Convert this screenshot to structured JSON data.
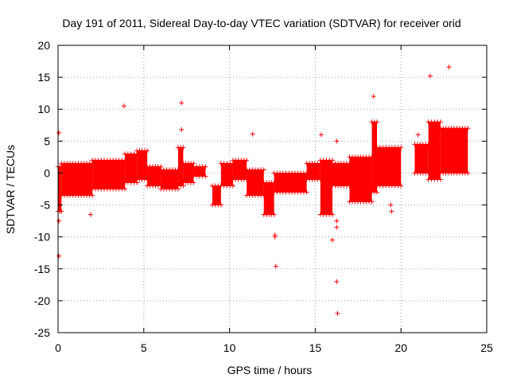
{
  "chart_data": {
    "type": "scatter",
    "title": "Day 191 of 2011, Sidereal Day-to-day VTEC variation (SDTVAR) for receiver orid",
    "xlabel": "GPS time / hours",
    "ylabel": "SDTVAR / TECUs",
    "xlim": [
      0,
      25
    ],
    "ylim": [
      -25,
      20
    ],
    "xticks": [
      0,
      5,
      10,
      15,
      20,
      25
    ],
    "xtick_labels": [
      "0",
      "5",
      "10",
      "15",
      "20",
      "25"
    ],
    "yticks": [
      -25,
      -20,
      -15,
      -10,
      -5,
      0,
      5,
      10,
      15,
      20
    ],
    "ytick_labels": [
      "-25",
      "-20",
      "-15",
      "-10",
      "-5",
      "0",
      "5",
      "10",
      "15",
      "20"
    ],
    "grid": true,
    "marker": "+",
    "series": [
      {
        "name": "SDTVAR",
        "color": "#ff0000",
        "bands": [
          {
            "x0": 0.0,
            "x1": 0.2,
            "lo": -6.0,
            "hi": 1.0
          },
          {
            "x0": 0.2,
            "x1": 2.0,
            "lo": -3.5,
            "hi": 1.5
          },
          {
            "x0": 2.0,
            "x1": 3.9,
            "lo": -2.5,
            "hi": 2.0
          },
          {
            "x0": 3.9,
            "x1": 4.6,
            "lo": -1.5,
            "hi": 3.0
          },
          {
            "x0": 4.6,
            "x1": 5.2,
            "lo": -1.0,
            "hi": 3.5
          },
          {
            "x0": 5.2,
            "x1": 6.0,
            "lo": -2.0,
            "hi": 1.0
          },
          {
            "x0": 6.0,
            "x1": 7.0,
            "lo": -2.5,
            "hi": 0.5
          },
          {
            "x0": 7.0,
            "x1": 7.3,
            "lo": -2.0,
            "hi": 4.0
          },
          {
            "x0": 7.3,
            "x1": 7.9,
            "lo": -1.5,
            "hi": 1.5
          },
          {
            "x0": 7.9,
            "x1": 8.6,
            "lo": -0.5,
            "hi": 1.0
          },
          {
            "x0": 9.0,
            "x1": 9.5,
            "lo": -5.0,
            "hi": -2.0
          },
          {
            "x0": 9.5,
            "x1": 10.2,
            "lo": -2.0,
            "hi": 1.5
          },
          {
            "x0": 10.2,
            "x1": 11.0,
            "lo": -1.0,
            "hi": 2.0
          },
          {
            "x0": 11.0,
            "x1": 12.0,
            "lo": -3.5,
            "hi": 0.5
          },
          {
            "x0": 12.0,
            "x1": 12.6,
            "lo": -6.5,
            "hi": -1.5
          },
          {
            "x0": 12.6,
            "x1": 14.5,
            "lo": -3.0,
            "hi": 0.0
          },
          {
            "x0": 14.5,
            "x1": 15.3,
            "lo": -1.0,
            "hi": 1.5
          },
          {
            "x0": 15.3,
            "x1": 16.0,
            "lo": -6.5,
            "hi": 2.0
          },
          {
            "x0": 16.0,
            "x1": 17.0,
            "lo": -2.0,
            "hi": 1.5
          },
          {
            "x0": 17.0,
            "x1": 18.3,
            "lo": -4.5,
            "hi": 2.5
          },
          {
            "x0": 18.3,
            "x1": 18.6,
            "lo": -3.0,
            "hi": 8.0
          },
          {
            "x0": 18.6,
            "x1": 20.0,
            "lo": -2.0,
            "hi": 4.0
          },
          {
            "x0": 20.8,
            "x1": 21.6,
            "lo": 0.0,
            "hi": 4.5
          },
          {
            "x0": 21.6,
            "x1": 22.3,
            "lo": -1.0,
            "hi": 8.0
          },
          {
            "x0": 22.3,
            "x1": 23.9,
            "lo": 0.0,
            "hi": 7.0
          }
        ],
        "outliers": [
          {
            "x": 0.05,
            "y": 6.3
          },
          {
            "x": 0.05,
            "y": -13.0
          },
          {
            "x": 0.05,
            "y": -7.5
          },
          {
            "x": 1.9,
            "y": -6.5
          },
          {
            "x": 3.85,
            "y": 10.5
          },
          {
            "x": 7.2,
            "y": 11.0
          },
          {
            "x": 7.2,
            "y": 6.8
          },
          {
            "x": 11.35,
            "y": 6.1
          },
          {
            "x": 12.65,
            "y": -9.7
          },
          {
            "x": 12.65,
            "y": -10.0
          },
          {
            "x": 12.7,
            "y": -14.6
          },
          {
            "x": 15.35,
            "y": 6.0
          },
          {
            "x": 16.0,
            "y": -10.5
          },
          {
            "x": 16.25,
            "y": 5.0
          },
          {
            "x": 16.25,
            "y": -7.5
          },
          {
            "x": 16.25,
            "y": -8.5
          },
          {
            "x": 16.25,
            "y": -17.0
          },
          {
            "x": 16.3,
            "y": -22.0
          },
          {
            "x": 18.4,
            "y": 12.0
          },
          {
            "x": 19.45,
            "y": -6.0
          },
          {
            "x": 19.4,
            "y": -5.0
          },
          {
            "x": 21.0,
            "y": 6.0
          },
          {
            "x": 21.7,
            "y": 15.2
          },
          {
            "x": 22.8,
            "y": 16.6
          }
        ]
      }
    ]
  }
}
